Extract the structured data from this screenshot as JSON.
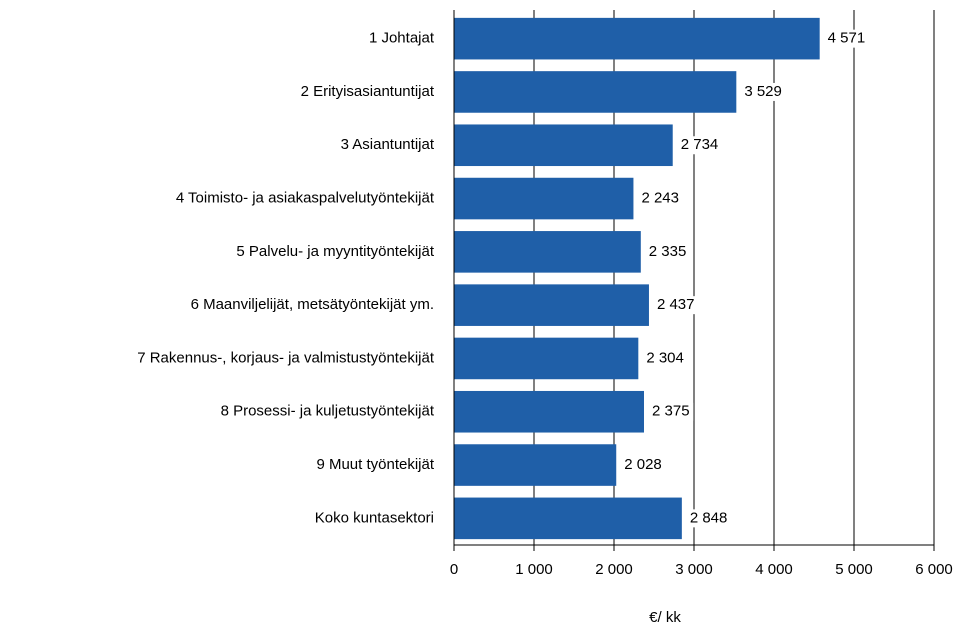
{
  "chart_data": {
    "type": "hbar",
    "categories": [
      "1 Johtajat",
      "2 Erityisasiantuntijat",
      "3 Asiantuntijat",
      "4 Toimisto- ja asiakaspalvelutyöntekijät",
      "5 Palvelu- ja myyntityöntekijät",
      "6 Maanviljelijät, metsätyöntekijät ym.",
      "7 Rakennus-, korjaus- ja valmistustyöntekijät",
      "8 Prosessi- ja kuljetustyöntekijät",
      "9 Muut työntekijät",
      "Koko kuntasektori"
    ],
    "values": [
      4571,
      3529,
      2734,
      2243,
      2335,
      2437,
      2304,
      2375,
      2028,
      2848
    ],
    "value_labels": [
      "4 571",
      "3 529",
      "2 734",
      "2 243",
      "2 335",
      "2 437",
      "2 304",
      "2 375",
      "2 028",
      "2 848"
    ],
    "color": "#1f5fa8",
    "xlim": [
      0,
      6000
    ],
    "xticks": [
      0,
      {
        "value": 1000,
        "label": "1 000"
      },
      {
        "value": 2000,
        "label": "2 000"
      },
      {
        "value": 3000,
        "label": "3 000"
      },
      {
        "value": 4000,
        "label": "4 000"
      },
      {
        "value": 5000,
        "label": "5 000"
      },
      {
        "value": 6000,
        "label": "6 000"
      }
    ],
    "x_label": "€/ kk",
    "grid": true
  }
}
